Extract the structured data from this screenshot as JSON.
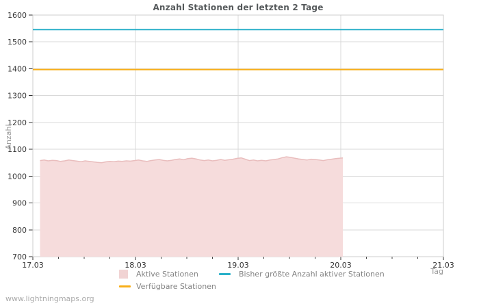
{
  "footer": {
    "text": "www.lightningmaps.org"
  },
  "chart_data": {
    "type": "area",
    "title": "Anzahl Stationen der letzten 2 Tage",
    "xlabel": "Tag",
    "ylabel": "Anzahl",
    "xlim": [
      0,
      4
    ],
    "ylim": [
      700,
      1600
    ],
    "grid": true,
    "legend_position": "bottom",
    "y_ticks": [
      700,
      800,
      900,
      1000,
      1100,
      1200,
      1300,
      1400,
      1500,
      1600
    ],
    "x_ticks": [
      {
        "v": 0,
        "label": "17.03"
      },
      {
        "v": 1,
        "label": "18.03"
      },
      {
        "v": 2,
        "label": "19.03"
      },
      {
        "v": 3,
        "label": "20.03"
      },
      {
        "v": 4,
        "label": "21.03"
      }
    ],
    "x_minor_step": 0.25,
    "series": [
      {
        "name": "Aktive Stationen",
        "type": "area",
        "color": "#e9bdbd",
        "fill": "#f6dcdc",
        "legend_swatch": "#f1d3d3",
        "x": [
          0.07,
          0.11,
          0.15,
          0.19,
          0.23,
          0.27,
          0.31,
          0.35,
          0.39,
          0.43,
          0.47,
          0.51,
          0.55,
          0.59,
          0.63,
          0.67,
          0.71,
          0.75,
          0.79,
          0.83,
          0.87,
          0.91,
          0.95,
          0.99,
          1.03,
          1.07,
          1.11,
          1.15,
          1.19,
          1.23,
          1.27,
          1.31,
          1.35,
          1.39,
          1.43,
          1.47,
          1.51,
          1.55,
          1.59,
          1.63,
          1.67,
          1.71,
          1.75,
          1.79,
          1.83,
          1.87,
          1.91,
          1.95,
          1.99,
          2.03,
          2.07,
          2.11,
          2.15,
          2.19,
          2.23,
          2.27,
          2.31,
          2.35,
          2.39,
          2.43,
          2.47,
          2.51,
          2.55,
          2.59,
          2.63,
          2.67,
          2.71,
          2.75,
          2.79,
          2.83,
          2.87,
          2.91,
          2.95,
          2.99,
          3.02
        ],
        "values": [
          1058,
          1060,
          1057,
          1059,
          1058,
          1055,
          1057,
          1060,
          1058,
          1056,
          1054,
          1057,
          1055,
          1053,
          1051,
          1050,
          1053,
          1055,
          1054,
          1056,
          1055,
          1057,
          1056,
          1058,
          1060,
          1057,
          1055,
          1058,
          1060,
          1062,
          1059,
          1057,
          1059,
          1062,
          1064,
          1061,
          1065,
          1067,
          1064,
          1060,
          1058,
          1060,
          1057,
          1059,
          1062,
          1059,
          1061,
          1063,
          1066,
          1068,
          1063,
          1058,
          1060,
          1057,
          1059,
          1057,
          1060,
          1062,
          1064,
          1069,
          1072,
          1070,
          1067,
          1064,
          1062,
          1060,
          1063,
          1062,
          1060,
          1058,
          1061,
          1063,
          1065,
          1067,
          1068
        ]
      },
      {
        "name": "Bisher größte Anzahl aktiver Stationen",
        "type": "line",
        "color": "#29b0c9",
        "x": [
          0,
          4
        ],
        "values": [
          1546,
          1546
        ]
      },
      {
        "name": "Verfügbare Stationen",
        "type": "line",
        "color": "#f8ae17",
        "x": [
          0,
          4
        ],
        "values": [
          1397,
          1397
        ]
      }
    ]
  }
}
